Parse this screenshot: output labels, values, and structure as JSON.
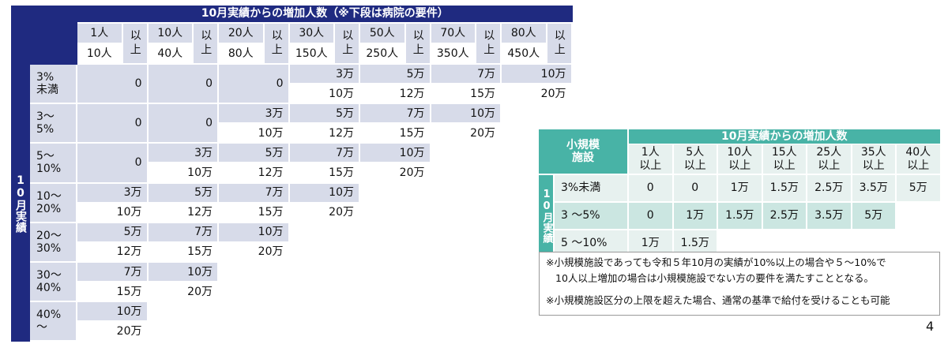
{
  "left_table": {
    "header_title": "10月実績からの増加人数（※下段は病院の要件）",
    "row_group_label": "10月実績",
    "columns": [
      {
        "top": "1人",
        "bottom": "10人",
        "suffix": "以上"
      },
      {
        "top": "10人",
        "bottom": "40人",
        "suffix": "以上"
      },
      {
        "top": "20人",
        "bottom": "80人",
        "suffix": "以上"
      },
      {
        "top": "30人",
        "bottom": "150人",
        "suffix": "以上"
      },
      {
        "top": "50人",
        "bottom": "250人",
        "suffix": "以上"
      },
      {
        "top": "70人",
        "bottom": "350人",
        "suffix": "以上"
      },
      {
        "top": "80人",
        "bottom": "450人",
        "suffix": "以上"
      }
    ],
    "rows": [
      {
        "label": "3%\n未満",
        "cells": [
          {
            "v": "0"
          },
          {
            "v": "0"
          },
          {
            "v": "0"
          },
          {
            "top": "3万",
            "bottom": "10万"
          },
          {
            "top": "5万",
            "bottom": "12万"
          },
          {
            "top": "7万",
            "bottom": "15万"
          },
          {
            "top": "10万",
            "bottom": "20万"
          }
        ]
      },
      {
        "label": "3～\n5%",
        "cells": [
          {
            "v": "0"
          },
          {
            "v": "0"
          },
          {
            "top": "3万",
            "bottom": "10万"
          },
          {
            "top": "5万",
            "bottom": "12万"
          },
          {
            "top": "7万",
            "bottom": "15万"
          },
          {
            "top": "10万",
            "bottom": "20万"
          }
        ]
      },
      {
        "label": "5～\n10%",
        "cells": [
          {
            "v": "0"
          },
          {
            "top": "3万",
            "bottom": "10万"
          },
          {
            "top": "5万",
            "bottom": "12万"
          },
          {
            "top": "7万",
            "bottom": "15万"
          },
          {
            "top": "10万",
            "bottom": "20万"
          }
        ]
      },
      {
        "label": "10～\n20%",
        "cells": [
          {
            "top": "3万",
            "bottom": "10万"
          },
          {
            "top": "5万",
            "bottom": "12万"
          },
          {
            "top": "7万",
            "bottom": "15万"
          },
          {
            "top": "10万",
            "bottom": "20万"
          }
        ]
      },
      {
        "label": "20～\n30%",
        "cells": [
          {
            "top": "5万",
            "bottom": "12万"
          },
          {
            "top": "7万",
            "bottom": "15万"
          },
          {
            "top": "10万",
            "bottom": "20万"
          }
        ]
      },
      {
        "label": "30～\n40%",
        "cells": [
          {
            "top": "7万",
            "bottom": "15万"
          },
          {
            "top": "10万",
            "bottom": "20万"
          }
        ]
      },
      {
        "label": "40%\n～",
        "cells": [
          {
            "top": "10万",
            "bottom": "20万"
          }
        ]
      }
    ]
  },
  "right_table": {
    "corner_label": "小規模\n施設",
    "header_title": "10月実績からの増加人数",
    "row_group_label": "10月実績",
    "columns": [
      "1人\n以上",
      "5人\n以上",
      "10人\n以上",
      "15人\n以上",
      "25人\n以上",
      "35人\n以上",
      "40人\n以上"
    ],
    "rows": [
      {
        "label": "3%未満",
        "cells": [
          "0",
          "0",
          "1万",
          "1.5万",
          "2.5万",
          "3.5万",
          "5万"
        ]
      },
      {
        "label": "3 ～5%",
        "cells": [
          "0",
          "1万",
          "1.5万",
          "2.5万",
          "3.5万",
          "5万"
        ]
      },
      {
        "label": "5 ～10%",
        "cells": [
          "1万",
          "1.5万"
        ]
      }
    ]
  },
  "notes": [
    "※小規模施設であっても令和５年10月の実績が10%以上の場合や５～10%で",
    "10人以上増加の場合は小規模施設でない方の要件を満たすこととなる。",
    "※小規模施設区分の上限を超えた場合、通常の基準で給付を受けることも可能"
  ],
  "page_number": "4",
  "colors": {
    "navy": "#1f2a80",
    "lavender": "#d7dbe9",
    "teal": "#48b3a6",
    "teal_light": "#e7f1ef",
    "teal_mid": "#cbe6e1"
  }
}
